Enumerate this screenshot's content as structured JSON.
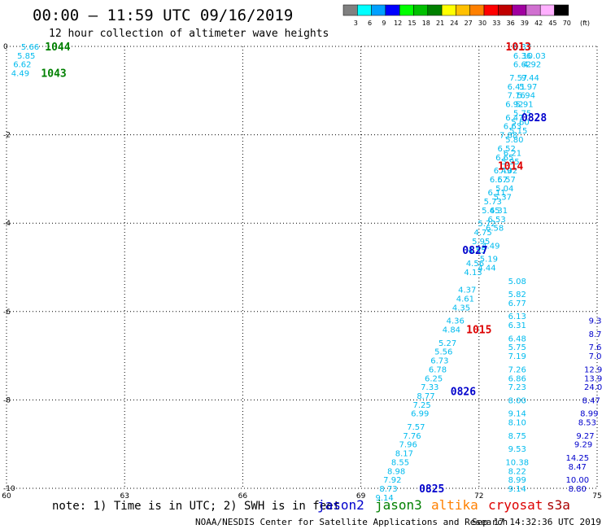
{
  "header": {
    "title": "00:00 – 11:59 UTC 09/16/2019",
    "subtitle": "12 hour collection of altimeter wave heights"
  },
  "color_scale": {
    "labels": [
      "3",
      "6",
      "9",
      "12",
      "15",
      "18",
      "21",
      "24",
      "27",
      "30",
      "33",
      "36",
      "39",
      "42",
      "45",
      "70"
    ],
    "unit": "(ft)",
    "colors": [
      "#808080",
      "#00ffff",
      "#00a0ff",
      "#0000ff",
      "#00ff00",
      "#00c000",
      "#008000",
      "#ffff00",
      "#ffc000",
      "#ff8000",
      "#ff0000",
      "#c00000",
      "#a000a0",
      "#d070d0",
      "#ffb0ff",
      "#000000"
    ]
  },
  "footer": {
    "note": "note: 1) Time is in UTC; 2) SWH is in feet",
    "credit": "NOAA/NESDIS Center for Satellite Applications and Research",
    "timestamp": "Sep 17 14:32:36 UTC 2019",
    "satellites": [
      {
        "name": "jason2",
        "color": "#0000cc"
      },
      {
        "name": "jason3",
        "color": "#008000"
      },
      {
        "name": "altika",
        "color": "#ff8000"
      },
      {
        "name": "cryosat",
        "color": "#dd0000"
      },
      {
        "name": "s3a",
        "color": "#aa0000"
      }
    ]
  },
  "chart_data": {
    "type": "scatter",
    "title": "00:00 – 11:59 UTC 09/16/2019",
    "subtitle": "12 hour collection of altimeter wave heights",
    "xlim": [
      60,
      75
    ],
    "ylim": [
      -10,
      0
    ],
    "x_ticks": [
      "60",
      "63",
      "66",
      "69",
      "72",
      "75"
    ],
    "y_ticks": [
      "0",
      "-2",
      "-4",
      "-6",
      "-8",
      "-10"
    ],
    "grid": true,
    "grid_style": "dotted",
    "time_labels": [
      {
        "text": "1044",
        "lon": 61.3,
        "lat": 0.0,
        "color": "#008000"
      },
      {
        "text": "1043",
        "lon": 61.2,
        "lat": -0.6,
        "color": "#008000"
      },
      {
        "text": "1013",
        "lon": 73.0,
        "lat": 0.0,
        "color": "#dd0000"
      },
      {
        "text": "0828",
        "lon": 73.4,
        "lat": -1.6,
        "color": "#0000cc"
      },
      {
        "text": "1014",
        "lon": 72.8,
        "lat": -2.7,
        "color": "#dd0000"
      },
      {
        "text": "0827",
        "lon": 71.9,
        "lat": -4.6,
        "color": "#0000cc"
      },
      {
        "text": "1015",
        "lon": 72.0,
        "lat": -6.4,
        "color": "#dd0000"
      },
      {
        "text": "0826",
        "lon": 71.6,
        "lat": -7.8,
        "color": "#0000cc"
      },
      {
        "text": "0825",
        "lon": 70.8,
        "lat": -10.0,
        "color": "#0000cc"
      }
    ],
    "series": [
      {
        "name": "jason3",
        "color": "#00bbee",
        "points": [
          {
            "lon": 60.6,
            "lat": 0.0,
            "swh": "5.66"
          },
          {
            "lon": 60.5,
            "lat": -0.2,
            "swh": "5.85"
          },
          {
            "lon": 60.4,
            "lat": -0.4,
            "swh": "6.62"
          },
          {
            "lon": 60.35,
            "lat": -0.6,
            "swh": "4.49"
          }
        ]
      },
      {
        "name": "cryosat",
        "color": "#00bbee",
        "points": [
          {
            "lon": 72.97,
            "lat": -10.0,
            "swh": "9.14"
          },
          {
            "lon": 72.97,
            "lat": -9.8,
            "swh": "8.99"
          },
          {
            "lon": 72.97,
            "lat": -9.6,
            "swh": "8.22"
          },
          {
            "lon": 72.97,
            "lat": -9.4,
            "swh": "10.38"
          },
          {
            "lon": 72.97,
            "lat": -9.1,
            "swh": "9.53"
          },
          {
            "lon": 72.97,
            "lat": -8.8,
            "swh": "8.75"
          },
          {
            "lon": 72.97,
            "lat": -8.5,
            "swh": "8.10"
          },
          {
            "lon": 72.97,
            "lat": -8.3,
            "swh": "9.14"
          },
          {
            "lon": 72.97,
            "lat": -8.0,
            "swh": "8.00"
          },
          {
            "lon": 72.97,
            "lat": -7.7,
            "swh": "7.23"
          },
          {
            "lon": 72.97,
            "lat": -7.5,
            "swh": "6.86"
          },
          {
            "lon": 72.97,
            "lat": -7.3,
            "swh": "7.26"
          },
          {
            "lon": 72.97,
            "lat": -7.0,
            "swh": "7.19"
          },
          {
            "lon": 72.97,
            "lat": -6.8,
            "swh": "5.75"
          },
          {
            "lon": 72.97,
            "lat": -6.6,
            "swh": "6.48"
          },
          {
            "lon": 72.97,
            "lat": -6.3,
            "swh": "6.31"
          },
          {
            "lon": 72.97,
            "lat": -6.1,
            "swh": "6.13"
          },
          {
            "lon": 72.97,
            "lat": -5.8,
            "swh": "6.77"
          },
          {
            "lon": 72.97,
            "lat": -5.6,
            "swh": "5.82"
          },
          {
            "lon": 72.97,
            "lat": -5.3,
            "swh": "5.08"
          }
        ]
      },
      {
        "name": "jason2-east",
        "color": "#00bbee",
        "points": [
          {
            "lon": 73.1,
            "lat": 0.0,
            "swh": "6.37"
          },
          {
            "lon": 73.1,
            "lat": -0.2,
            "swh": "6.36"
          },
          {
            "lon": 73.1,
            "lat": -0.4,
            "swh": "6.62"
          },
          {
            "lon": 73.0,
            "lat": -0.7,
            "swh": "7.57"
          },
          {
            "lon": 72.95,
            "lat": -0.9,
            "swh": "6.41"
          },
          {
            "lon": 72.95,
            "lat": -1.1,
            "swh": "7.16"
          },
          {
            "lon": 72.9,
            "lat": -1.3,
            "swh": "6.92"
          },
          {
            "lon": 72.9,
            "lat": -1.6,
            "swh": "6.47"
          },
          {
            "lon": 72.85,
            "lat": -1.8,
            "swh": "6.63"
          },
          {
            "lon": 72.75,
            "lat": -2.0,
            "swh": "7.88"
          },
          {
            "lon": 72.7,
            "lat": -2.3,
            "swh": "6.52"
          },
          {
            "lon": 72.65,
            "lat": -2.5,
            "swh": "6.65"
          },
          {
            "lon": 72.6,
            "lat": -2.8,
            "swh": "6.49"
          },
          {
            "lon": 72.5,
            "lat": -3.0,
            "swh": "6.67"
          },
          {
            "lon": 72.45,
            "lat": -3.3,
            "swh": "6.11"
          },
          {
            "lon": 72.35,
            "lat": -3.5,
            "swh": "5.73"
          },
          {
            "lon": 72.3,
            "lat": -3.7,
            "swh": "5.45"
          },
          {
            "lon": 72.2,
            "lat": -4.0,
            "swh": "5.72"
          },
          {
            "lon": 72.1,
            "lat": -4.2,
            "swh": "4.75"
          },
          {
            "lon": 72.05,
            "lat": -4.4,
            "swh": "5.95"
          },
          {
            "lon": 71.95,
            "lat": -4.6,
            "swh": "4.55"
          },
          {
            "lon": 71.9,
            "lat": -4.9,
            "swh": "4.56"
          },
          {
            "lon": 71.85,
            "lat": -5.1,
            "swh": "4.13"
          },
          {
            "lon": 71.7,
            "lat": -5.5,
            "swh": "4.37"
          },
          {
            "lon": 71.65,
            "lat": -5.7,
            "swh": "4.61"
          },
          {
            "lon": 71.55,
            "lat": -5.9,
            "swh": "4.35"
          },
          {
            "lon": 71.4,
            "lat": -6.2,
            "swh": "4.36"
          },
          {
            "lon": 71.3,
            "lat": -6.4,
            "swh": "4.84"
          },
          {
            "lon": 71.2,
            "lat": -6.7,
            "swh": "5.27"
          },
          {
            "lon": 71.1,
            "lat": -6.9,
            "swh": "5.56"
          },
          {
            "lon": 71.0,
            "lat": -7.1,
            "swh": "6.73"
          },
          {
            "lon": 70.95,
            "lat": -7.3,
            "swh": "6.78"
          },
          {
            "lon": 70.85,
            "lat": -7.5,
            "swh": "6.25"
          },
          {
            "lon": 70.75,
            "lat": -7.7,
            "swh": "7.33"
          },
          {
            "lon": 70.65,
            "lat": -7.9,
            "swh": "8.77"
          },
          {
            "lon": 70.55,
            "lat": -8.1,
            "swh": "7.25"
          },
          {
            "lon": 70.5,
            "lat": -8.3,
            "swh": "6.99"
          },
          {
            "lon": 70.4,
            "lat": -8.6,
            "swh": "7.57"
          },
          {
            "lon": 70.3,
            "lat": -8.8,
            "swh": "7.76"
          },
          {
            "lon": 70.2,
            "lat": -9.0,
            "swh": "7.96"
          },
          {
            "lon": 70.1,
            "lat": -9.2,
            "swh": "8.17"
          },
          {
            "lon": 70.0,
            "lat": -9.4,
            "swh": "8.55"
          },
          {
            "lon": 69.9,
            "lat": -9.6,
            "swh": "8.98"
          },
          {
            "lon": 69.8,
            "lat": -9.8,
            "swh": "7.92"
          },
          {
            "lon": 69.7,
            "lat": -10.0,
            "swh": "8.73"
          },
          {
            "lon": 69.6,
            "lat": -10.2,
            "swh": "9.14"
          }
        ]
      },
      {
        "name": "jason2-west",
        "color": "#00bbee",
        "points": [
          {
            "lon": 73.4,
            "lat": -0.2,
            "swh": "10.03"
          },
          {
            "lon": 73.35,
            "lat": -0.4,
            "swh": "4.92"
          },
          {
            "lon": 73.3,
            "lat": -0.7,
            "swh": "9.44"
          },
          {
            "lon": 73.25,
            "lat": -0.9,
            "swh": "5.97"
          },
          {
            "lon": 73.2,
            "lat": -1.1,
            "swh": "5.94"
          },
          {
            "lon": 73.15,
            "lat": -1.3,
            "swh": "5.91"
          },
          {
            "lon": 73.1,
            "lat": -1.5,
            "swh": "5.75"
          },
          {
            "lon": 73.05,
            "lat": -1.7,
            "swh": "5.60"
          },
          {
            "lon": 73.0,
            "lat": -1.9,
            "swh": "5.15"
          },
          {
            "lon": 72.9,
            "lat": -2.1,
            "swh": "5.80"
          },
          {
            "lon": 72.85,
            "lat": -2.4,
            "swh": "6.21"
          },
          {
            "lon": 72.8,
            "lat": -2.6,
            "swh": "5.95"
          },
          {
            "lon": 72.75,
            "lat": -2.8,
            "swh": "7.02"
          },
          {
            "lon": 72.7,
            "lat": -3.0,
            "swh": "5.57"
          },
          {
            "lon": 72.65,
            "lat": -3.2,
            "swh": "5.04"
          },
          {
            "lon": 72.6,
            "lat": -3.4,
            "swh": "5.37"
          },
          {
            "lon": 72.5,
            "lat": -3.7,
            "swh": "6.31"
          },
          {
            "lon": 72.45,
            "lat": -3.9,
            "swh": "6.53"
          },
          {
            "lon": 72.4,
            "lat": -4.1,
            "swh": "6.58"
          },
          {
            "lon": 72.3,
            "lat": -4.5,
            "swh": "4.49"
          },
          {
            "lon": 72.25,
            "lat": -4.8,
            "swh": "5.19"
          },
          {
            "lon": 72.2,
            "lat": -5.0,
            "swh": "4.44"
          }
        ]
      },
      {
        "name": "s3a",
        "color": "#0000cc",
        "points": [
          {
            "lon": 74.95,
            "lat": -6.2,
            "swh": "9.3"
          },
          {
            "lon": 74.95,
            "lat": -6.5,
            "swh": "8.7"
          },
          {
            "lon": 74.95,
            "lat": -6.8,
            "swh": "7.6"
          },
          {
            "lon": 74.95,
            "lat": -7.0,
            "swh": "7.0"
          },
          {
            "lon": 74.9,
            "lat": -7.3,
            "swh": "12.9"
          },
          {
            "lon": 74.9,
            "lat": -7.5,
            "swh": "13.9"
          },
          {
            "lon": 74.9,
            "lat": -7.7,
            "swh": "24.0"
          },
          {
            "lon": 74.85,
            "lat": -8.0,
            "swh": "8.47"
          },
          {
            "lon": 74.8,
            "lat": -8.3,
            "swh": "8.99"
          },
          {
            "lon": 74.75,
            "lat": -8.5,
            "swh": "8.53"
          },
          {
            "lon": 74.7,
            "lat": -8.8,
            "swh": "9.27"
          },
          {
            "lon": 74.65,
            "lat": -9.0,
            "swh": "9.29"
          },
          {
            "lon": 74.5,
            "lat": -9.3,
            "swh": "14.25"
          },
          {
            "lon": 74.5,
            "lat": -9.5,
            "swh": "8.47"
          },
          {
            "lon": 74.5,
            "lat": -9.8,
            "swh": "10.00"
          },
          {
            "lon": 74.5,
            "lat": -10.0,
            "swh": "8.80"
          }
        ]
      }
    ]
  }
}
